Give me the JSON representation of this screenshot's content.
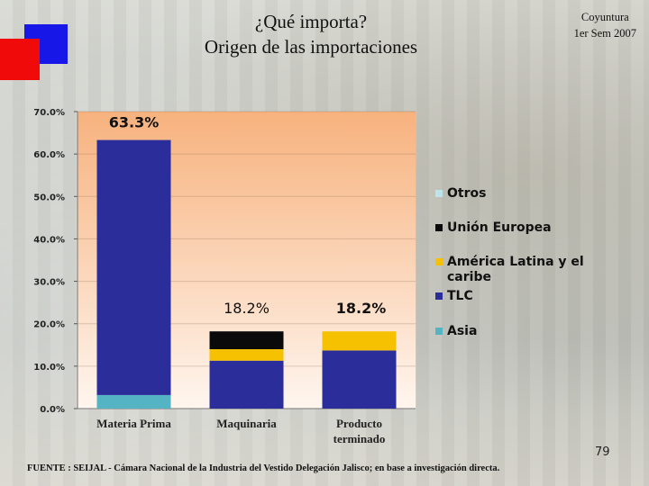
{
  "title_line1": "¿Qué importa?",
  "title_line2": "Origen de las importaciones",
  "corner_line1": "Coyuntura",
  "corner_line2": "1er Sem 2007",
  "page_number": "79",
  "source": "FUENTE : SEIJAL - Cámara Nacional de la Industria del Vestido Delegación Jalisco; en base a investigación directa.",
  "colors": {
    "square_blue": "#1717e8",
    "square_red": "#f00a0a",
    "Asia": "#55b4c4",
    "TLC": "#2b2d9a",
    "America_Latina": "#f5c100",
    "Union_Europea": "#0a0a0a",
    "Otros": "#bfe3ea"
  },
  "chart_data": {
    "type": "bar",
    "stacked": true,
    "categories": [
      "Materia Prima",
      "Maquinaria",
      "Producto terminado"
    ],
    "ylim": [
      0,
      70
    ],
    "yticks": [
      "0.0%",
      "10.0%",
      "20.0%",
      "30.0%",
      "40.0%",
      "50.0%",
      "60.0%",
      "70.0%"
    ],
    "series": [
      {
        "name": "Asia",
        "values": [
          3.2,
          0,
          0
        ]
      },
      {
        "name": "TLC",
        "values": [
          60.1,
          11.3,
          13.7
        ]
      },
      {
        "name": "América Latina y el caribe",
        "values": [
          0,
          2.7,
          4.5
        ]
      },
      {
        "name": "Unión Europea",
        "values": [
          0,
          4.2,
          0
        ]
      },
      {
        "name": "Otros",
        "values": [
          0,
          0,
          0
        ]
      }
    ],
    "totals_labels": [
      "63.3%",
      "18.2%",
      "18.2%"
    ],
    "legend_order": [
      "Otros",
      "Unión Europea",
      "América Latina y el caribe",
      "TLC",
      "Asia"
    ],
    "legend_position": "right"
  }
}
